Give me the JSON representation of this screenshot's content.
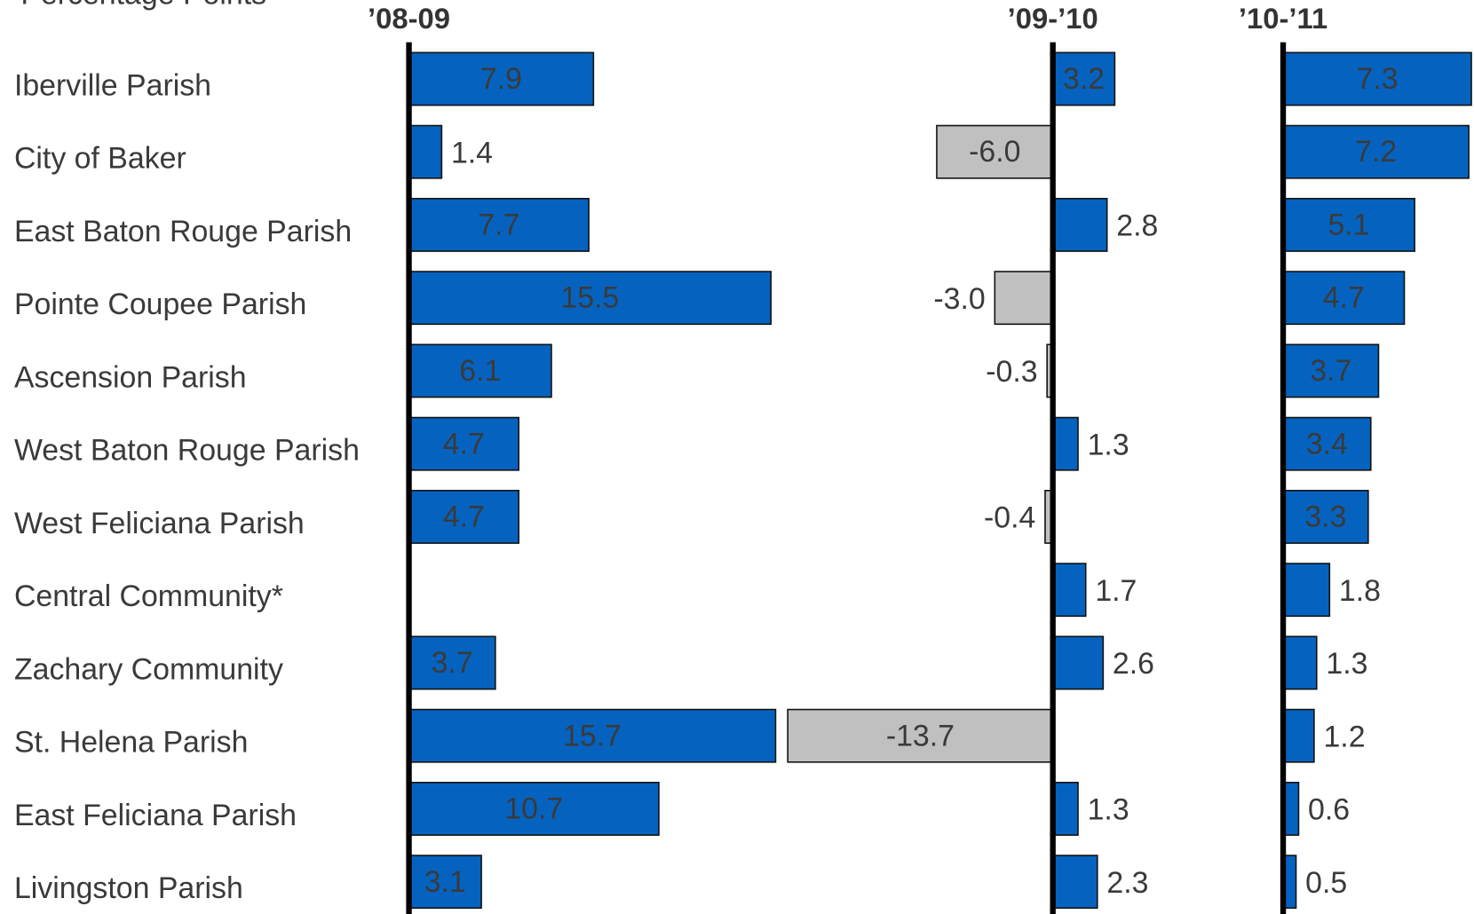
{
  "chart_data": {
    "type": "bar",
    "orientation": "horizontal",
    "axis_label": "Percentage Points",
    "categories": [
      "Iberville Parish",
      "City of Baker",
      "East Baton Rouge Parish",
      "Pointe Coupee Parish",
      "Ascension Parish",
      "West Baton Rouge Parish",
      "West Feliciana Parish",
      "Central Community*",
      "Zachary Community",
      "St. Helena Parish",
      "East Feliciana Parish",
      "Livingston Parish"
    ],
    "negative_color": "#c0c0c0",
    "series": [
      {
        "name": "’08-09",
        "color": "#0563bf",
        "xlim": [
          0,
          16.1
        ],
        "values": [
          7.9,
          1.4,
          7.7,
          15.5,
          6.1,
          4.7,
          4.7,
          null,
          3.7,
          15.7,
          10.7,
          3.1
        ],
        "value_labels": [
          "7.9",
          "1.4",
          "7.7",
          "15.5",
          "6.1",
          "4.7",
          "4.7",
          null,
          "3.7",
          "15.7",
          "10.7",
          "3.1"
        ]
      },
      {
        "name": "’09-’10",
        "color": "#0563bf",
        "xlim": [
          -13.7,
          3.4
        ],
        "values": [
          3.2,
          -6.0,
          2.8,
          -3.0,
          -0.3,
          1.3,
          -0.4,
          1.7,
          2.6,
          -13.7,
          1.3,
          2.3
        ],
        "value_labels": [
          "3.2",
          "-6.0",
          "2.8",
          "-3.0",
          "-0.3",
          "1.3",
          "-0.4",
          "1.7",
          "2.6",
          "-13.7",
          "1.3",
          "2.3"
        ]
      },
      {
        "name": "’10-’11",
        "color": "#0563bf",
        "xlim": [
          0,
          7.4
        ],
        "values": [
          7.3,
          7.2,
          5.1,
          4.7,
          3.7,
          3.4,
          3.3,
          1.8,
          1.3,
          1.2,
          0.6,
          0.5
        ],
        "value_labels": [
          "7.3",
          "7.2",
          "5.1",
          "4.7",
          "3.7",
          "3.4",
          "3.3",
          "1.8",
          "1.3",
          "1.2",
          "0.6",
          "0.5"
        ]
      }
    ]
  }
}
